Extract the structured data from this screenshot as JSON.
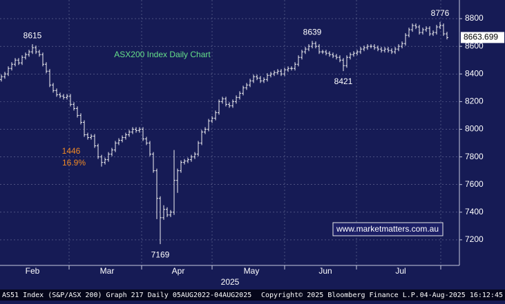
{
  "chart_data": {
    "type": "ohlc",
    "title": "ASX200 Index Daily Chart",
    "ylim": [
      7015,
      8935
    ],
    "yticks": [
      7200,
      7400,
      7600,
      7800,
      8000,
      8200,
      8400,
      8600,
      8800
    ],
    "xlim": [
      -0.4,
      132.6
    ],
    "xticks": [
      {
        "value": 9,
        "label": "Feb"
      },
      {
        "value": 30.6,
        "label": "Mar"
      },
      {
        "value": 51.2,
        "label": "Apr"
      },
      {
        "value": 72.4,
        "label": "May"
      },
      {
        "value": 93.8,
        "label": "Jun"
      },
      {
        "value": 115.6,
        "label": "Jul"
      }
    ],
    "xgrid": [
      19.6,
      40.6,
      61,
      82,
      102.8,
      127.2
    ],
    "year_label": "2025",
    "grid": true,
    "color": "#f2f2f2",
    "open": [
      8360,
      8380,
      8400,
      8440,
      8470,
      8500,
      8480,
      8520,
      8540,
      8560,
      8590,
      8560,
      8540,
      8470,
      8420,
      8320,
      8280,
      8250,
      8240,
      8230,
      8240,
      8180,
      8150,
      8100,
      8050,
      7960,
      7940,
      7950,
      7880,
      7800,
      7760,
      7780,
      7820,
      7850,
      7900,
      7920,
      7940,
      7960,
      7980,
      8000,
      7990,
      8000,
      7930,
      7900,
      7820,
      7700,
      7500,
      7360,
      7420,
      7380,
      7400,
      7630,
      7700,
      7760,
      7770,
      7780,
      7800,
      7820,
      7900,
      7980,
      8000,
      8060,
      8080,
      8120,
      8200,
      8220,
      8180,
      8170,
      8200,
      8230,
      8260,
      8300,
      8320,
      8350,
      8380,
      8370,
      8350,
      8360,
      8390,
      8400,
      8410,
      8420,
      8400,
      8430,
      8440,
      8440,
      8470,
      8520,
      8560,
      8580,
      8600,
      8620,
      8600,
      8560,
      8560,
      8550,
      8540,
      8530,
      8520,
      8500,
      8460,
      8520,
      8540,
      8550,
      8560,
      8580,
      8590,
      8600,
      8600,
      8590,
      8580,
      8570,
      8580,
      8570,
      8560,
      8580,
      8600,
      8620,
      8680,
      8720,
      8750,
      8740,
      8700,
      8720,
      8730,
      8690,
      8700,
      8740,
      8750,
      8690
    ],
    "high": [
      8395,
      8415,
      8455,
      8485,
      8515,
      8515,
      8535,
      8555,
      8575,
      8615,
      8605,
      8575,
      8555,
      8485,
      8435,
      8335,
      8295,
      8265,
      8255,
      8255,
      8255,
      8195,
      8165,
      8115,
      8065,
      7975,
      7965,
      7965,
      7895,
      7815,
      7795,
      7835,
      7865,
      7915,
      7935,
      7955,
      7975,
      7995,
      8015,
      8015,
      8015,
      8015,
      7945,
      7915,
      7835,
      7715,
      7515,
      7450,
      7435,
      7415,
      7850,
      7715,
      7775,
      7785,
      7795,
      7815,
      7835,
      7915,
      7995,
      8015,
      8075,
      8095,
      8135,
      8215,
      8235,
      8235,
      8195,
      8215,
      8245,
      8275,
      8315,
      8335,
      8365,
      8395,
      8395,
      8385,
      8375,
      8405,
      8415,
      8425,
      8435,
      8435,
      8445,
      8455,
      8455,
      8485,
      8535,
      8575,
      8595,
      8615,
      8639,
      8635,
      8615,
      8575,
      8575,
      8565,
      8555,
      8545,
      8535,
      8515,
      8535,
      8555,
      8565,
      8575,
      8595,
      8605,
      8615,
      8615,
      8615,
      8605,
      8595,
      8595,
      8595,
      8585,
      8595,
      8615,
      8635,
      8695,
      8735,
      8765,
      8765,
      8755,
      8735,
      8745,
      8745,
      8715,
      8755,
      8776,
      8765,
      8705
    ],
    "low": [
      8345,
      8365,
      8385,
      8425,
      8455,
      8465,
      8465,
      8505,
      8525,
      8545,
      8545,
      8525,
      8455,
      8405,
      8305,
      8265,
      8235,
      8225,
      8215,
      8215,
      8165,
      8135,
      8085,
      8035,
      7945,
      7925,
      7925,
      7865,
      7785,
      7730,
      7745,
      7765,
      7805,
      7835,
      7885,
      7905,
      7925,
      7945,
      7965,
      7975,
      7975,
      7915,
      7885,
      7805,
      7685,
      7350,
      7169,
      7345,
      7365,
      7365,
      7380,
      7540,
      7685,
      7745,
      7755,
      7765,
      7785,
      7805,
      7885,
      7965,
      7985,
      8045,
      8065,
      8105,
      8185,
      8165,
      8155,
      8155,
      8185,
      8215,
      8245,
      8285,
      8305,
      8335,
      8355,
      8335,
      8335,
      8345,
      8375,
      8385,
      8395,
      8385,
      8385,
      8415,
      8425,
      8425,
      8455,
      8505,
      8545,
      8565,
      8585,
      8585,
      8545,
      8545,
      8535,
      8525,
      8515,
      8505,
      8485,
      8421,
      8445,
      8505,
      8525,
      8535,
      8545,
      8565,
      8575,
      8585,
      8575,
      8565,
      8555,
      8555,
      8555,
      8545,
      8545,
      8565,
      8585,
      8605,
      8665,
      8705,
      8725,
      8685,
      8685,
      8705,
      8675,
      8675,
      8685,
      8725,
      8675,
      8650
    ],
    "close": [
      8380,
      8400,
      8440,
      8470,
      8500,
      8480,
      8520,
      8540,
      8560,
      8590,
      8560,
      8540,
      8470,
      8420,
      8320,
      8280,
      8250,
      8240,
      8230,
      8240,
      8180,
      8150,
      8100,
      8050,
      7960,
      7940,
      7950,
      7880,
      7800,
      7760,
      7780,
      7820,
      7850,
      7900,
      7920,
      7940,
      7960,
      7980,
      8000,
      7990,
      8000,
      7930,
      7900,
      7820,
      7700,
      7500,
      7360,
      7420,
      7380,
      7400,
      7630,
      7700,
      7760,
      7770,
      7780,
      7800,
      7820,
      7900,
      7980,
      8000,
      8060,
      8080,
      8120,
      8200,
      8220,
      8180,
      8170,
      8200,
      8230,
      8260,
      8300,
      8320,
      8350,
      8380,
      8370,
      8350,
      8360,
      8390,
      8400,
      8410,
      8420,
      8400,
      8430,
      8440,
      8440,
      8470,
      8520,
      8560,
      8580,
      8600,
      8620,
      8600,
      8560,
      8560,
      8550,
      8540,
      8530,
      8520,
      8500,
      8460,
      8520,
      8540,
      8550,
      8560,
      8580,
      8590,
      8600,
      8600,
      8590,
      8580,
      8570,
      8580,
      8570,
      8560,
      8580,
      8600,
      8620,
      8680,
      8720,
      8750,
      8740,
      8700,
      8720,
      8730,
      8690,
      8700,
      8740,
      8750,
      8690,
      8663.699
    ],
    "extremes": [
      {
        "series": "high",
        "index": 9
      },
      {
        "series": "low",
        "index": 46
      },
      {
        "series": "high",
        "index": 90
      },
      {
        "series": "low",
        "index": 99
      },
      {
        "series": "high",
        "index": 127
      }
    ],
    "annotations": [
      {
        "text": "1446",
        "color": "#f08a24"
      },
      {
        "text": "16.9%",
        "color": "#f08a24"
      }
    ],
    "watermark": "www.marketmatters.com.au"
  },
  "footer": [
    "AS51 Index (S&P/ASX 200) Graph 217  Daily 05AUG2022-04AUG2025",
    "Copyright© 2025 Bloomberg Finance L.P.",
    "04-Aug-2025 16:12:45"
  ]
}
